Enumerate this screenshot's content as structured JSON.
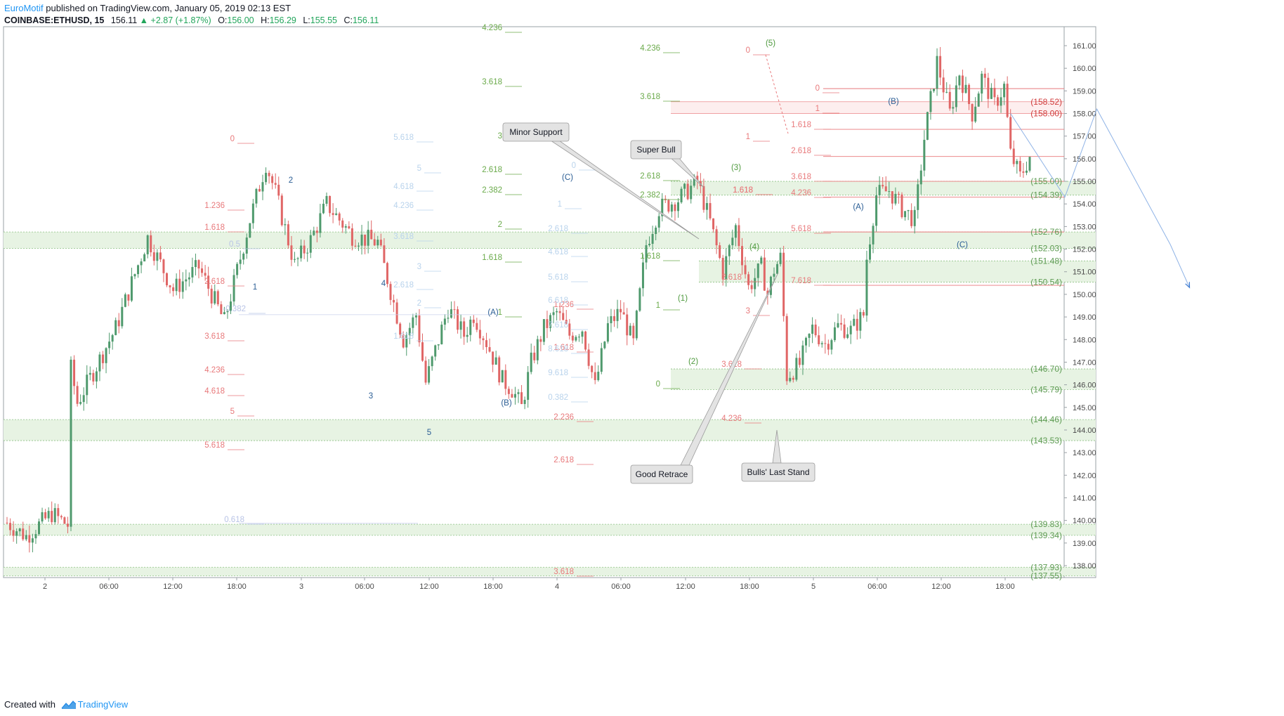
{
  "header": {
    "author": "EuroMotif",
    "published_text": "published on TradingView.com, January 05, 2019 02:13 EST",
    "symbol": "COINBASE:ETHUSD, 15",
    "last_price": "156.11",
    "change_arrow": "▲",
    "change": "+2.87 (+1.87%)",
    "open_label": "O:",
    "open_value": "156.00",
    "high_label": "H:",
    "high_value": "156.29",
    "low_label": "L:",
    "low_value": "155.55",
    "close_label": "C:",
    "close_value": "156.11"
  },
  "footer": {
    "created_with": "Created with",
    "brand": "TradingView",
    "logo_icon": "tradingview-logo-icon"
  },
  "colors": {
    "up_candle": "#4f9a6d",
    "down_candle": "#e06666",
    "zone_fill": "#e7f3e3",
    "zone_border": "#8ec285",
    "zone_label": "#5d9b52",
    "fib_green": "#6aaa4a",
    "fib_red": "#e8797b",
    "fib_lightblue": "#b9d3ec",
    "wave_blue": "#2a5d94",
    "wave_green": "#4f9a3f",
    "callout_fill": "#e3e3e3",
    "accent": "#2196f3"
  },
  "chart_data": {
    "type": "candlestick",
    "title": "",
    "y_axis": {
      "side": "right",
      "range": [
        137.5,
        161.5
      ],
      "ticks": [
        "138.00",
        "139.00",
        "140.00",
        "141.00",
        "142.00",
        "143.00",
        "144.00",
        "145.00",
        "146.00",
        "147.00",
        "148.00",
        "149.00",
        "150.00",
        "151.00",
        "152.00",
        "153.00",
        "154.00",
        "155.00",
        "156.00",
        "157.00",
        "158.00",
        "159.00",
        "160.00",
        "161.00"
      ]
    },
    "x_axis": {
      "interval": "15 minutes",
      "ticks": [
        "2",
        "06:00",
        "12:00",
        "18:00",
        "3",
        "06:00",
        "12:00",
        "18:00",
        "4",
        "06:00",
        "12:00",
        "18:00",
        "5",
        "06:00",
        "12:00",
        "18:00"
      ]
    },
    "candles": [],
    "price_path": [
      [
        0,
        139.9
      ],
      [
        6,
        139.3
      ],
      [
        14,
        140.3
      ],
      [
        19,
        139.8
      ],
      [
        20,
        146.7
      ],
      [
        22,
        145.2
      ],
      [
        34,
        148.5
      ],
      [
        44,
        152.5
      ],
      [
        52,
        150.2
      ],
      [
        60,
        151.2
      ],
      [
        68,
        148.8
      ],
      [
        76,
        153.3
      ],
      [
        81,
        155.8
      ],
      [
        84,
        154.5
      ],
      [
        90,
        151.3
      ],
      [
        95,
        152.4
      ],
      [
        100,
        154.0
      ],
      [
        108,
        152.6
      ],
      [
        116,
        152.3
      ],
      [
        124,
        148.0
      ],
      [
        128,
        149.1
      ],
      [
        131,
        146.1
      ],
      [
        138,
        149.4
      ],
      [
        143,
        148.2
      ],
      [
        146,
        149.1
      ],
      [
        150,
        147.9
      ],
      [
        155,
        146.2
      ],
      [
        158,
        145.8
      ],
      [
        161,
        145.0
      ],
      [
        164,
        147.0
      ],
      [
        168,
        148.5
      ],
      [
        172,
        149.2
      ],
      [
        176,
        148.2
      ],
      [
        180,
        148.5
      ],
      [
        184,
        145.9
      ],
      [
        188,
        148.6
      ],
      [
        192,
        149.3
      ],
      [
        196,
        147.8
      ],
      [
        200,
        152.2
      ],
      [
        204,
        153.8
      ],
      [
        210,
        154.2
      ],
      [
        216,
        155.0
      ],
      [
        220,
        153.2
      ],
      [
        224,
        151.0
      ],
      [
        228,
        153.0
      ],
      [
        232,
        150.3
      ],
      [
        236,
        151.2
      ],
      [
        238,
        150.0
      ],
      [
        240,
        151.1
      ],
      [
        242,
        151.6
      ],
      [
        244,
        146.4
      ],
      [
        248,
        146.9
      ],
      [
        252,
        148.5
      ],
      [
        256,
        147.8
      ],
      [
        260,
        148.6
      ],
      [
        264,
        148.4
      ],
      [
        268,
        149.1
      ],
      [
        269,
        151.6
      ],
      [
        272,
        154.4
      ],
      [
        276,
        154.6
      ],
      [
        280,
        153.8
      ],
      [
        284,
        153.3
      ],
      [
        287,
        156.9
      ],
      [
        291,
        160.3
      ],
      [
        295,
        158.0
      ],
      [
        298,
        159.8
      ],
      [
        302,
        158.0
      ],
      [
        305,
        159.6
      ],
      [
        309,
        158.4
      ],
      [
        312,
        159.2
      ],
      [
        314,
        156.2
      ],
      [
        317,
        155.2
      ],
      [
        320,
        156.1
      ]
    ],
    "green_zones": [
      {
        "top": 152.76,
        "bottom": 152.03
      },
      {
        "top": 151.48,
        "bottom": 150.54
      },
      {
        "top": 146.7,
        "bottom": 145.79
      },
      {
        "top": 144.46,
        "bottom": 143.53
      },
      {
        "top": 139.83,
        "bottom": 139.34
      },
      {
        "top": 137.93,
        "bottom": 137.55
      },
      {
        "top": 155.0,
        "bottom": 154.39
      }
    ],
    "zone_labels": [
      "(155.00)",
      "(154.39)",
      "(152.76)",
      "(152.03)",
      "(151.48)",
      "(150.54)",
      "(146.70)",
      "(145.79)",
      "(144.46)",
      "(143.53)",
      "(139.83)",
      "(139.34)",
      "(137.93)",
      "(137.55)"
    ],
    "red_price_labels": [
      "(158.52)",
      "(158.00)"
    ],
    "fib_labels": [
      "4.236",
      "3.618",
      "3",
      "2.618",
      "2.382",
      "2",
      "1.618",
      "1",
      "4.236",
      "3.618",
      "2.618",
      "2.382",
      "1.618",
      "1",
      "0",
      "0",
      "1.236",
      "1.618",
      "0.5",
      "2.618",
      "3.618",
      "4.236",
      "4.618",
      "5",
      "5.618",
      "1.236",
      "1.618",
      "2.236",
      "2.618",
      "3.618",
      "0",
      "1",
      "1.618",
      "2.618",
      "3",
      "3.618",
      "4.236",
      "0",
      "1",
      "1.618",
      "2.618",
      "3.618",
      "4.236",
      "5.618",
      "7.618",
      "1.618",
      "5.618",
      "5",
      "4.618",
      "4.236",
      "3.618",
      "3",
      "2.618",
      "2",
      "1.618",
      "0",
      "1",
      "2.618",
      "4.618",
      "5.618",
      "6.618",
      "7.618",
      "8.618",
      "9.618",
      "0.382",
      "-0.382",
      "0.618"
    ],
    "wave_labels": [
      "1",
      "2",
      "3",
      "4",
      "5",
      "(A)",
      "(B)",
      "(C)",
      "(1)",
      "(2)",
      "(3)",
      "(4)",
      "(5)",
      "(A)",
      "(B)",
      "(C)"
    ],
    "callouts": [
      "Minor Support",
      "Super Bull",
      "Good Retrace",
      "Bulls' Last Stand"
    ],
    "projection_path": [
      [
        314,
        158.0
      ],
      [
        331,
        154.3
      ],
      [
        341,
        158.2
      ],
      [
        364,
        152.2
      ],
      [
        370,
        150.3
      ]
    ],
    "grid": false,
    "legend": "none"
  }
}
